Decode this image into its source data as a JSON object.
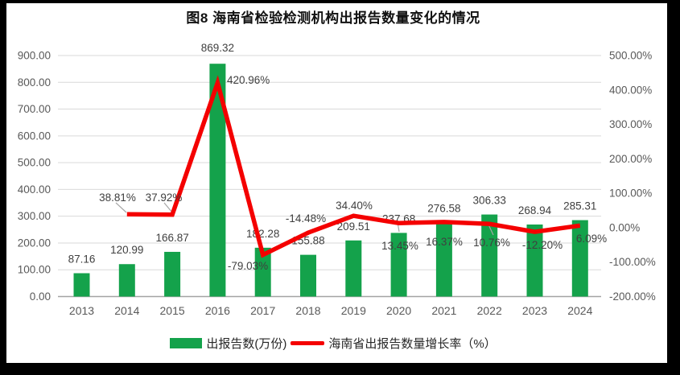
{
  "chart_data": {
    "type": "combo-bar-line",
    "title": "图8 海南省检验检测机构出报告数量变化的情况",
    "categories": [
      "2013",
      "2014",
      "2015",
      "2016",
      "2017",
      "2018",
      "2019",
      "2020",
      "2021",
      "2022",
      "2023",
      "2024"
    ],
    "series": [
      {
        "name": "出报告数(万份)",
        "type": "bar",
        "axis": "left",
        "color": "#14A24B",
        "values": [
          87.16,
          120.99,
          166.87,
          869.32,
          182.28,
          155.88,
          209.51,
          237.68,
          276.58,
          306.33,
          268.94,
          285.31
        ]
      },
      {
        "name": "海南省出报告数量增长率（%）",
        "type": "line",
        "axis": "right",
        "color": "#F40000",
        "values": [
          null,
          38.81,
          37.92,
          420.96,
          -79.03,
          -14.48,
          34.4,
          13.45,
          16.37,
          10.76,
          -12.2,
          6.09
        ]
      }
    ],
    "left_axis": {
      "min": 0,
      "max": 900,
      "step": 100,
      "suffix": ""
    },
    "right_axis": {
      "min": -200,
      "max": 500,
      "step": 100,
      "suffix": "%"
    },
    "grid": true,
    "legend_position": "bottom",
    "colors": {
      "grid": "#D9D9D9",
      "zero_axis": "#A3A3A3",
      "tick_text": "#595959",
      "label_text": "#3F3F3F",
      "leader": "#A6A6A6"
    }
  }
}
